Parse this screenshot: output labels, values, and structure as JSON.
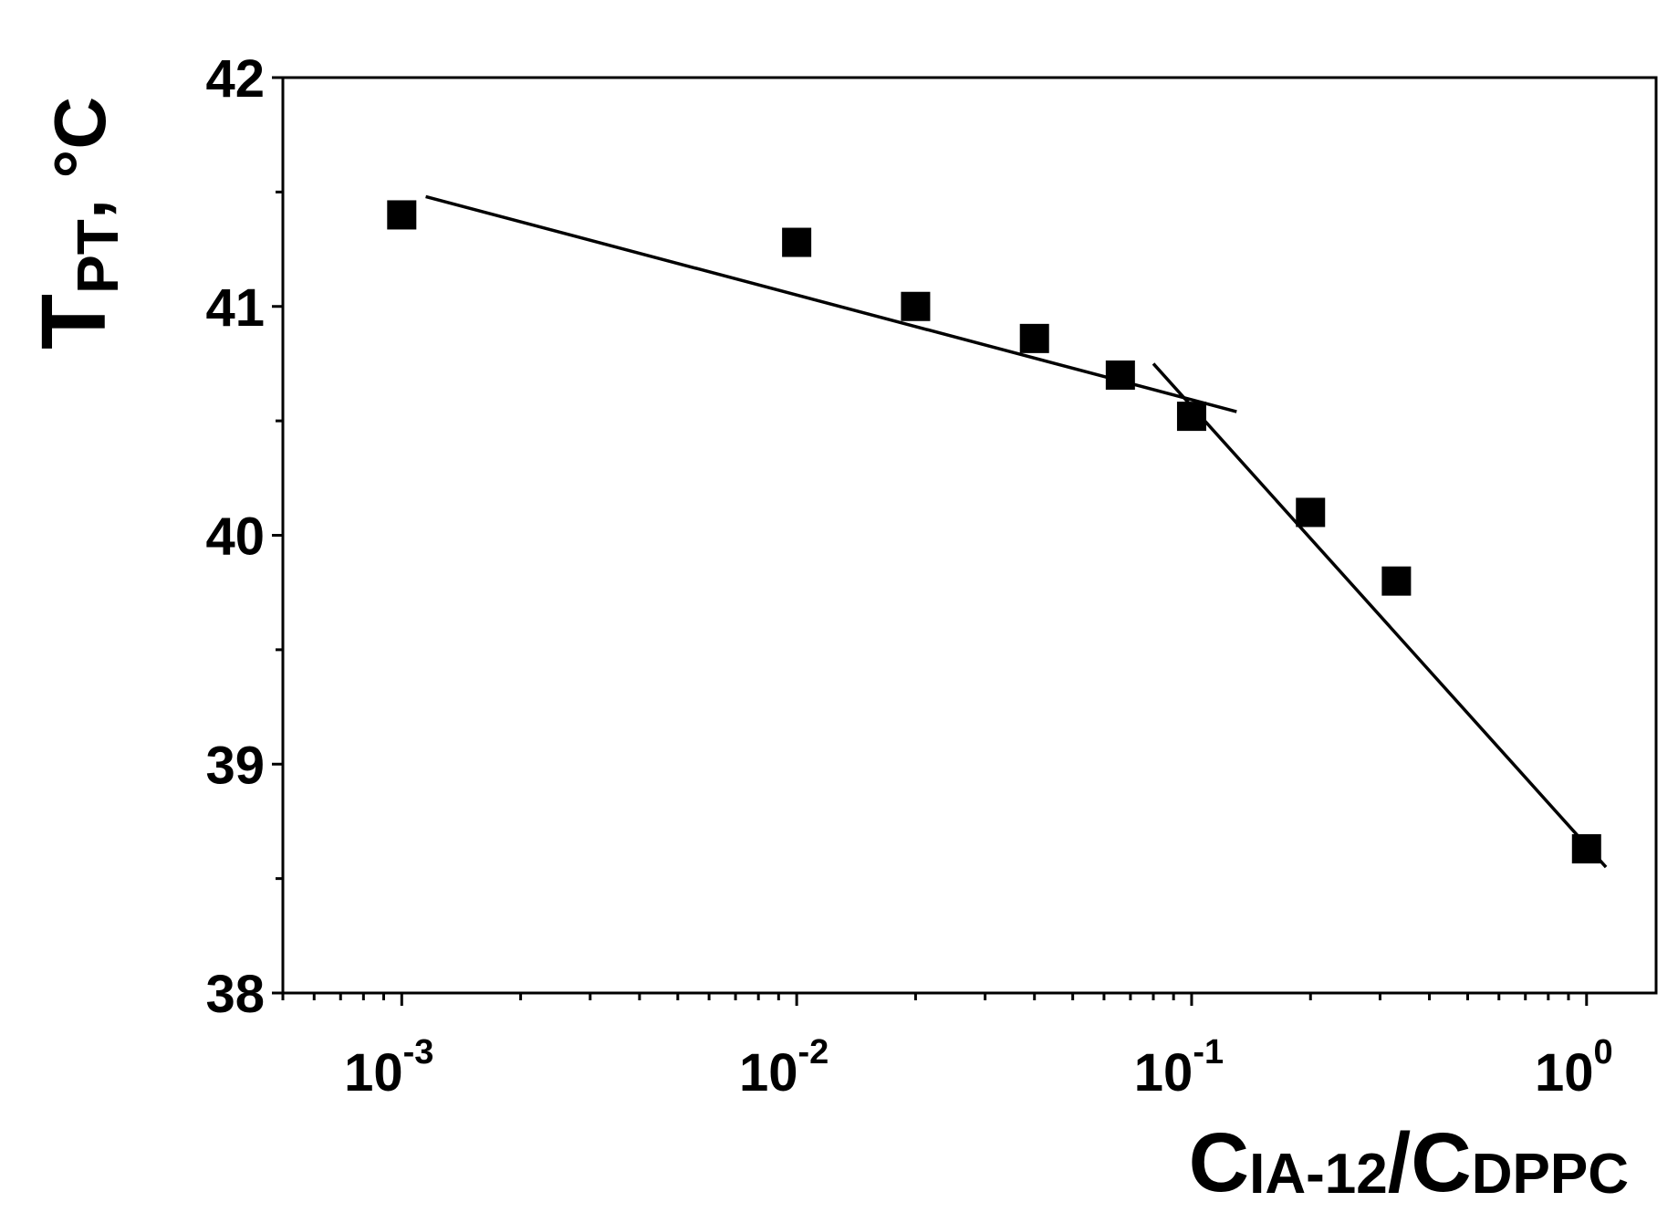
{
  "chart_data": {
    "type": "scatter",
    "x_scale": "log",
    "xlim": [
      0.0005,
      1.5
    ],
    "ylim": [
      38,
      42
    ],
    "xlabel": {
      "main1": "C",
      "sub1": "IA-12",
      "slash": "/",
      "main2": "C",
      "sub2": "DPPC"
    },
    "ylabel": {
      "main": "T",
      "sub": "PT",
      "rest": ", °C"
    },
    "x_ticks": [
      {
        "value": 0.001,
        "base": "10",
        "exp": "-3"
      },
      {
        "value": 0.01,
        "base": "10",
        "exp": "-2"
      },
      {
        "value": 0.1,
        "base": "10",
        "exp": "-1"
      },
      {
        "value": 1,
        "base": "10",
        "exp": "0"
      }
    ],
    "y_ticks": [
      38,
      39,
      40,
      41,
      42
    ],
    "y_minor_ticks": [
      38.5,
      39.5,
      40.5,
      41.5
    ],
    "grid": false,
    "legend": "none",
    "series": [
      {
        "marker": "square",
        "color": "#000000",
        "points": [
          {
            "x": 0.001,
            "y": 41.4
          },
          {
            "x": 0.01,
            "y": 41.28
          },
          {
            "x": 0.02,
            "y": 41.0
          },
          {
            "x": 0.04,
            "y": 40.86
          },
          {
            "x": 0.066,
            "y": 40.7
          },
          {
            "x": 0.1,
            "y": 40.52
          },
          {
            "x": 0.2,
            "y": 40.1
          },
          {
            "x": 0.33,
            "y": 39.8
          },
          {
            "x": 1,
            "y": 38.63
          }
        ]
      }
    ],
    "fit_lines": [
      {
        "color": "#000000",
        "x1": 0.00115,
        "y1": 41.48,
        "x2": 0.13,
        "y2": 40.54
      },
      {
        "color": "#000000",
        "x1": 0.08,
        "y1": 40.75,
        "x2": 1.12,
        "y2": 38.55
      }
    ]
  }
}
